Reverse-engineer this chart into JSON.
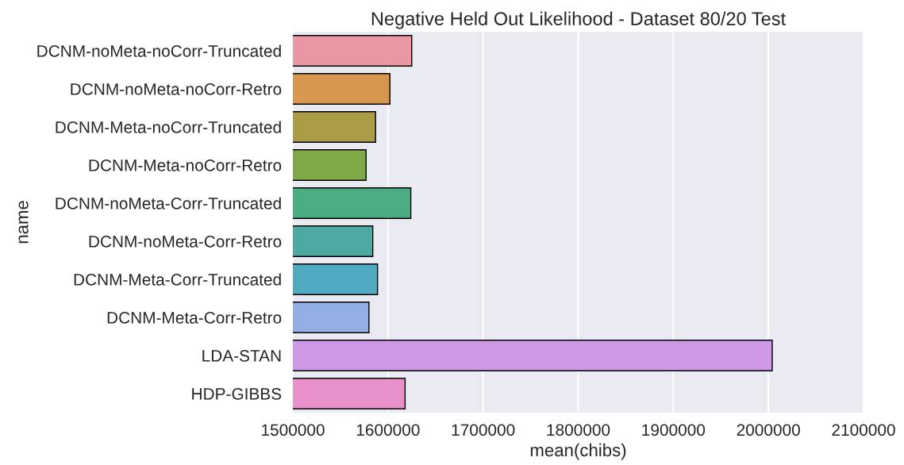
{
  "chart_data": {
    "type": "bar",
    "orientation": "horizontal",
    "title": "Negative Held Out Likelihood - Dataset 80/20 Test",
    "xlabel": "mean(chibs)",
    "ylabel": "name",
    "categories": [
      "DCNM-noMeta-noCorr-Truncated",
      "DCNM-noMeta-noCorr-Retro",
      "DCNM-Meta-noCorr-Truncated",
      "DCNM-Meta-noCorr-Retro",
      "DCNM-noMeta-Corr-Truncated",
      "DCNM-noMeta-Corr-Retro",
      "DCNM-Meta-Corr-Truncated",
      "DCNM-Meta-Corr-Retro",
      "LDA-STAN",
      "HDP-GIBBS"
    ],
    "values": [
      1625000,
      1602000,
      1587000,
      1577000,
      1624000,
      1584000,
      1589000,
      1580000,
      2004000,
      1618000
    ],
    "colors": [
      "#ea96a3",
      "#d8974f",
      "#ab9c48",
      "#80a948",
      "#4bae83",
      "#4daaa3",
      "#50abc2",
      "#94aee6",
      "#ce9ae8",
      "#e991cb"
    ],
    "xlim": [
      1500000,
      2100000
    ],
    "xticks": [
      1500000,
      1600000,
      1700000,
      1800000,
      1900000,
      2000000,
      2100000
    ],
    "grid": "x"
  }
}
